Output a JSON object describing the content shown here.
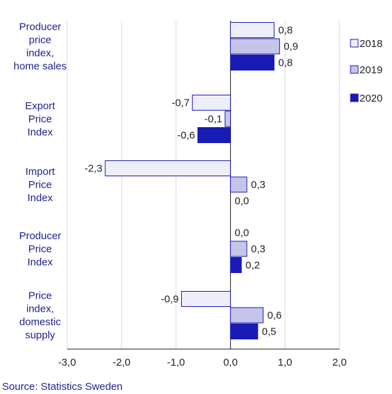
{
  "chart_data": {
    "type": "bar",
    "orientation": "horizontal",
    "categories": [
      [
        "Producer",
        "price",
        "index,",
        "home sales"
      ],
      [
        "Export",
        "Price",
        "Index"
      ],
      [
        "Import",
        "Price",
        "Index"
      ],
      [
        "Producer",
        "Price",
        "Index"
      ],
      [
        "Price",
        "index,",
        "domestic",
        "supply"
      ]
    ],
    "series": [
      {
        "name": "2018",
        "values": [
          0.8,
          -0.7,
          -2.3,
          0.0,
          -0.9
        ],
        "labels": [
          "0,8",
          "-0,7",
          "-2,3",
          "0,0",
          "-0,9"
        ],
        "color": "#eeeefa"
      },
      {
        "name": "2019",
        "values": [
          0.9,
          -0.1,
          0.3,
          0.3,
          0.6
        ],
        "labels": [
          "0,9",
          "-0,1",
          "0,3",
          "0,3",
          "0,6"
        ],
        "color": "#c5c5ea"
      },
      {
        "name": "2020",
        "values": [
          0.8,
          -0.6,
          0.0,
          0.2,
          0.5
        ],
        "labels": [
          "0,8",
          "-0,6",
          "0,0",
          "0,2",
          "0,5"
        ],
        "color": "#1a1ab4"
      }
    ],
    "xlim": [
      -3.0,
      2.0
    ],
    "xticks": [
      -3.0,
      -2.0,
      -1.0,
      0.0,
      1.0,
      2.0
    ],
    "xtick_labels": [
      "-3,0",
      "-2,0",
      "-1,0",
      "0,0",
      "1,0",
      "2,0"
    ],
    "grid": true,
    "legend_position": "right",
    "title": "",
    "xlabel": "",
    "ylabel": "",
    "bar_border_color": "#1a1ab4",
    "grid_color": "#d6d6ec"
  },
  "source": "Source: Statistics Sweden"
}
